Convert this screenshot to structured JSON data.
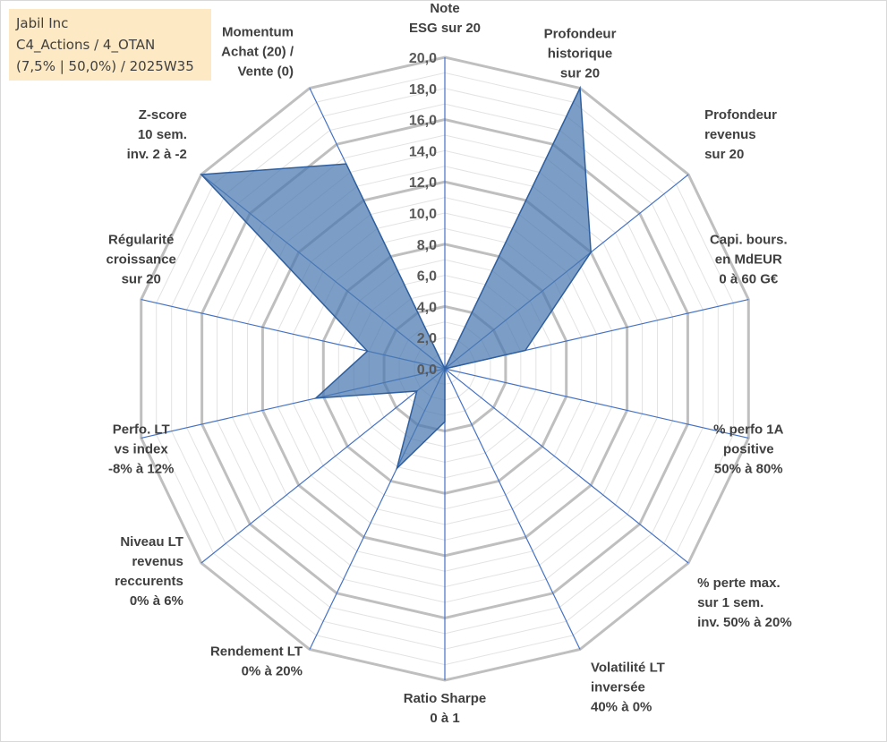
{
  "info_box": {
    "lines": [
      "Jabil Inc",
      "C4_Actions / 4_OTAN",
      "(7,5% | 50,0%) / 2025W35"
    ],
    "background": "#fde9c4"
  },
  "chart_data": {
    "type": "radar",
    "title": "",
    "categories": [
      [
        "Note",
        "ESG sur 20"
      ],
      [
        "Profondeur",
        "historique",
        "sur 20"
      ],
      [
        "Profondeur",
        "revenus",
        "sur 20"
      ],
      [
        "Capi. bours.",
        "en MdEUR",
        "0 à 60 G€"
      ],
      [
        "% perfo 1A",
        "positive",
        "50% à 80%"
      ],
      [
        "% perte max.",
        "sur 1 sem.",
        "inv. 50% à 20%"
      ],
      [
        "Volatilité LT",
        "inversée",
        "40% à 0%"
      ],
      [
        "Ratio Sharpe",
        "0 à 1"
      ],
      [
        "Rendement LT",
        "0% à 20%"
      ],
      [
        "Niveau LT",
        "revenus",
        "reccurents",
        "0% à 6%"
      ],
      [
        "Perfo. LT",
        "vs index",
        "-8% à 12%"
      ],
      [
        "Régularité",
        "croissance",
        "sur 20"
      ],
      [
        "Z-score",
        "10 sem.",
        "inv. 2 à -2"
      ],
      [
        "Momentum",
        "Achat (20) /",
        "Vente (0)"
      ]
    ],
    "series": [
      {
        "values": [
          0.0,
          20.0,
          12.0,
          5.3,
          0.0,
          0.0,
          0.0,
          3.4,
          7.1,
          2.3,
          8.5,
          5.1,
          20.0,
          14.6
        ],
        "fill": "#4a78b0",
        "stroke": "#2f5f9e"
      }
    ],
    "rlim": [
      0,
      20
    ],
    "tick_values": [
      0,
      2,
      4,
      6,
      8,
      10,
      12,
      14,
      16,
      18,
      20
    ],
    "tick_labels": [
      "0,0",
      "2,0",
      "4,0",
      "6,0",
      "8,0",
      "10,0",
      "12,0",
      "14,0",
      "16,0",
      "18,0",
      "20,0"
    ],
    "major_grid_values": [
      4,
      8,
      12,
      16,
      20
    ],
    "grid": true,
    "legend": "none",
    "colors": {
      "minor_grid": "#e3e3e3",
      "major_grid": "#bfbfbf",
      "spokes": "#4472c4",
      "labels": "#404040",
      "ticks": "#595959"
    }
  }
}
